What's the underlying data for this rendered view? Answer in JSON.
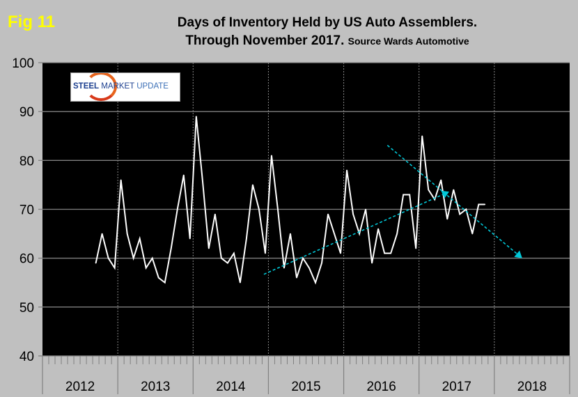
{
  "figure_label": "Fig 11",
  "logo_text": "STEEL MARKET UPDATE",
  "chart_data": {
    "type": "line",
    "title": "Days of Inventory Held by US Auto Assemblers.",
    "subtitle": "Through November 2017.",
    "source": "Source Wards Automotive",
    "xlabel": "",
    "ylabel": "",
    "ylim": [
      40,
      100
    ],
    "yticks": [
      40,
      50,
      60,
      70,
      80,
      90,
      100
    ],
    "year_labels": [
      "2012",
      "2013",
      "2014",
      "2015",
      "2016",
      "2017",
      "2018"
    ],
    "grid": true,
    "background": "#000000",
    "line_color": "#ffffff",
    "trend_color": "#00c8d8",
    "start_month": "2012-09",
    "series": [
      {
        "values": [
          59,
          65,
          60,
          58,
          76,
          65,
          60,
          64,
          58,
          60,
          56,
          55,
          62,
          70,
          77,
          64,
          89,
          76,
          62,
          69,
          60,
          59,
          61,
          55,
          64,
          75,
          70,
          61,
          81,
          70,
          58,
          65,
          56,
          60,
          58,
          55,
          59,
          69,
          65,
          61,
          78,
          69,
          65,
          70,
          59,
          66,
          61,
          61,
          65,
          73,
          73,
          62,
          85,
          74,
          72,
          76,
          68,
          74,
          69,
          70,
          65,
          71,
          71
        ]
      }
    ],
    "trendlines": [
      {
        "from": [
          2014.94,
          56.7
        ],
        "to": [
          2017.4,
          73.6
        ]
      },
      {
        "from": [
          2016.58,
          83.1
        ],
        "to": [
          2018.37,
          60.0
        ]
      }
    ]
  }
}
